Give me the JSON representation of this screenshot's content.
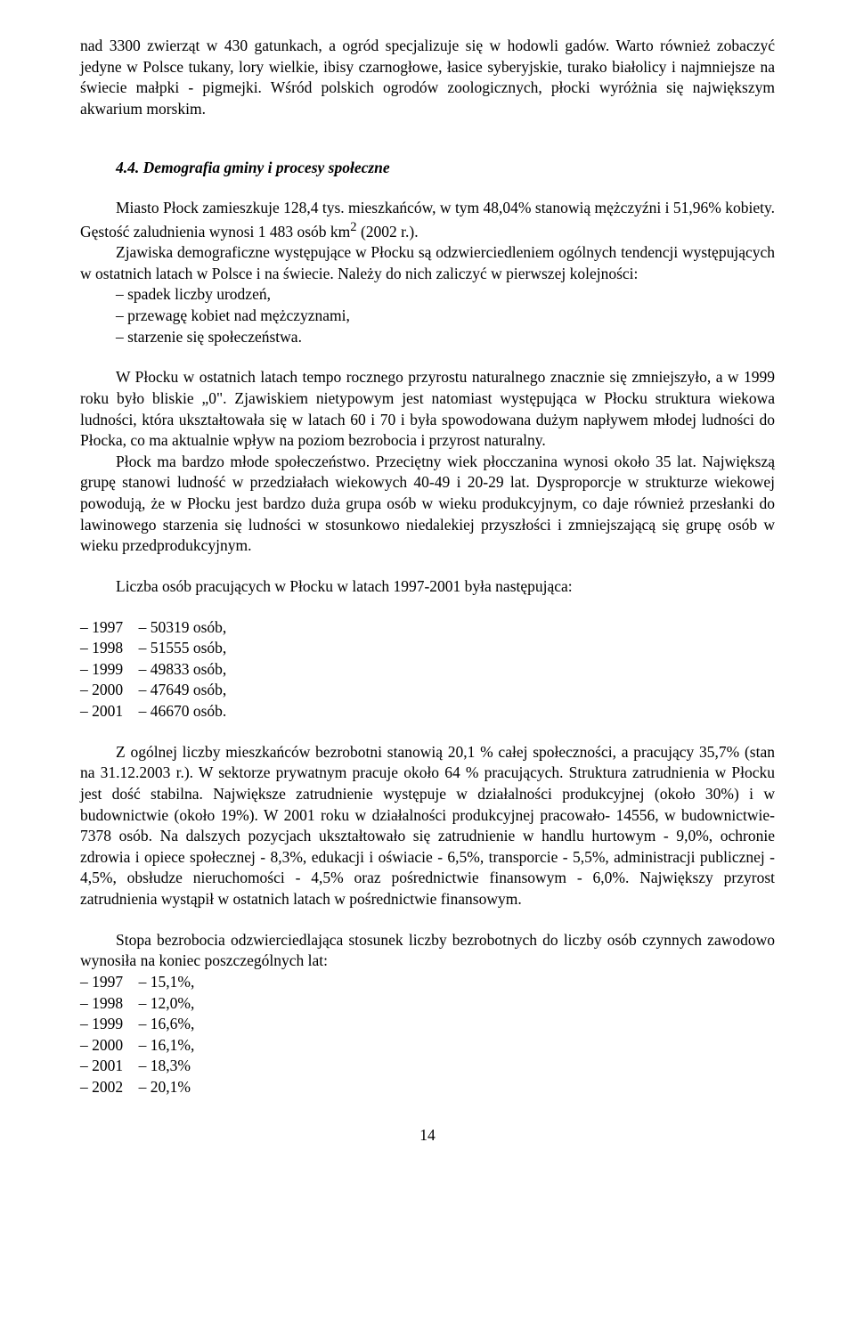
{
  "intro": {
    "p1": "nad 3300 zwierząt w 430 gatunkach, a ogród specjalizuje się w hodowli gadów. Warto również zobaczyć jedyne w Polsce tukany, lory wielkie, ibisy czarnogłowe, łasice syberyjskie, turako białolicy i najmniejsze na świecie małpki - pigmejki. Wśród polskich ogrodów zoologicznych, płocki wyróżnia się największym akwarium morskim."
  },
  "heading": "4.4. Demografia gminy i procesy społeczne",
  "demo": {
    "p1_a": "Miasto Płock zamieszkuje 128,4 tys. mieszkańców, w tym 48,04% stanowią mężczyźni i 51,96% kobiety. Gęstość zaludnienia wynosi 1 483 osób km",
    "p1_b": " (2002 r.).",
    "p2": "Zjawiska demograficzne występujące w Płocku są odzwierciedleniem ogólnych tendencji występujących w ostatnich latach w Polsce i na świecie. Należy do nich zaliczyć w pierwszej kolejności:",
    "l1": "– spadek liczby  urodzeń,",
    "l2": "– przewagę kobiet nad mężczyznami,",
    "l3": "– starzenie się społeczeństwa."
  },
  "pop": {
    "p1": "W Płocku w ostatnich latach tempo rocznego przyrostu naturalnego znacznie się zmniejszyło, a w 1999 roku było bliskie „0\". Zjawiskiem nietypowym jest natomiast występująca w Płocku struktura wiekowa ludności, która ukształtowała się w latach 60 i 70 i była spowodowana dużym napływem młodej ludności do Płocka, co ma aktualnie wpływ na  poziom bezrobocia i przyrost naturalny.",
    "p2": "Płock ma bardzo młode społeczeństwo. Przeciętny wiek płocczanina  wynosi około 35 lat. Największą grupę stanowi ludność w przedziałach wiekowych 40-49 i 20-29 lat. Dysproporcje w strukturze wiekowej powodują, że w Płocku jest bardzo duża grupa osób w wieku produkcyjnym, co daje również przesłanki do lawinowego starzenia się ludności w stosunkowo niedalekiej przyszłości i zmniejszającą się grupę osób w wieku przedprodukcyjnym."
  },
  "employment": {
    "intro": "Liczba osób pracujących w Płocku w latach 1997-2001 była następująca:",
    "e1": "– 1997    – 50319 osób,",
    "e2": "– 1998    – 51555 osób,",
    "e3": "– 1999    – 49833 osób,",
    "e4": "– 2000    – 47649 osób,",
    "e5": "– 2001    – 46670 osób."
  },
  "analysis": {
    "p1": "Z ogólnej liczby mieszkańców bezrobotni stanowią 20,1 % całej społeczności, a pracujący 35,7% (stan na 31.12.2003 r.). W sektorze prywatnym pracuje około 64 % pracujących. Struktura zatrudnienia w Płocku jest dość stabilna. Największe zatrudnienie występuje w działalności produkcyjnej (około 30%) i w budownictwie (około 19%). W 2001 roku w działalności produkcyjnej pracowało- 14556, w budownictwie- 7378 osób. Na dalszych pozycjach ukształtowało się zatrudnienie w handlu hurtowym - 9,0%, ochronie zdrowia i opiece społecznej - 8,3%, edukacji i oświacie - 6,5%, transporcie - 5,5%, administracji publicznej - 4,5%, obsłudze nieruchomości - 4,5% oraz pośrednictwie finansowym - 6,0%. Największy przyrost zatrudnienia wystąpił w ostatnich latach w pośrednictwie finansowym."
  },
  "unemployment": {
    "intro": "Stopa bezrobocia odzwierciedlająca stosunek liczby bezrobotnych do liczby osób czynnych zawodowo wynosiła na koniec poszczególnych lat:",
    "u1": "– 1997    – 15,1%,",
    "u2": "– 1998    – 12,0%,",
    "u3": "– 1999    – 16,6%,",
    "u4": "– 2000    – 16,1%,",
    "u5": "– 2001    – 18,3%",
    "u6": "– 2002    – 20,1%"
  },
  "page_number": "14",
  "sup2": "2"
}
